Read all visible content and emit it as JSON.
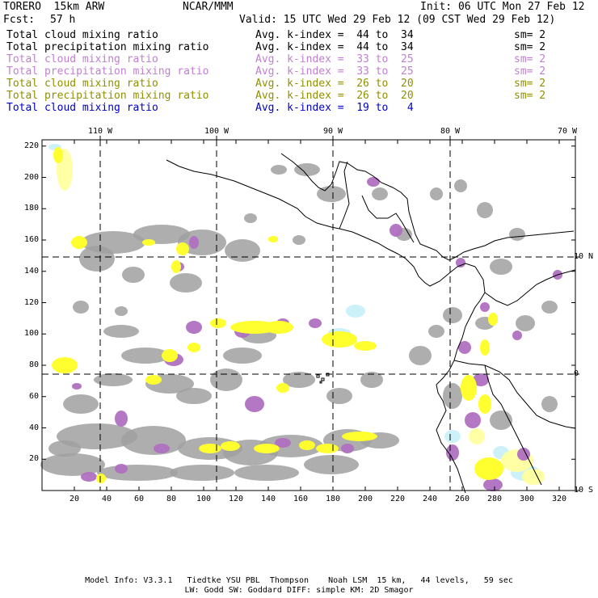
{
  "header": {
    "model": "TORERO  15km ARW",
    "center": "NCAR/MMM",
    "init": "Init: 06 UTC Mon 27 Feb 12",
    "fcst_label": "Fcst:",
    "fcst_value": "57 h",
    "valid": "Valid: 15 UTC Wed 29 Feb 12 (09 CST Wed 29 Feb 12)"
  },
  "fields": [
    {
      "name": "Total cloud mixing ratio",
      "index": "Avg. k-index =  44 to  34",
      "sm": "sm= 2",
      "color": "#000000"
    },
    {
      "name": "Total precipitation mixing ratio",
      "index": "Avg. k-index =  44 to  34",
      "sm": "sm= 2",
      "color": "#000000"
    },
    {
      "name": "Total cloud mixing ratio",
      "index": "Avg. k-index =  33 to  25",
      "sm": "sm= 2",
      "color": "#c080d0"
    },
    {
      "name": "Total precipitation mixing ratio",
      "index": "Avg. k-index =  33 to  25",
      "sm": "sm= 2",
      "color": "#c080d0"
    },
    {
      "name": "Total cloud mixing ratio",
      "index": "Avg. k-index =  26 to  20",
      "sm": "sm= 2",
      "color": "#909000"
    },
    {
      "name": "Total precipitation mixing ratio",
      "index": "Avg. k-index =  26 to  20",
      "sm": "sm= 2",
      "color": "#909000"
    },
    {
      "name": "Total cloud mixing ratio",
      "index": "Avg. k-index =  19 to   4",
      "sm": "",
      "color": "#0000cc"
    }
  ],
  "axes": {
    "top_ticks": [
      "110 W",
      "100 W",
      "90 W",
      "80 W",
      "70 W"
    ],
    "right_ticks": [
      "10 N",
      "0",
      "10 S"
    ],
    "x_ticks": [
      "20",
      "40",
      "60",
      "80",
      "100",
      "120",
      "140",
      "160",
      "180",
      "200",
      "220",
      "240",
      "260",
      "280",
      "300",
      "320"
    ],
    "y_ticks": [
      "220",
      "200",
      "180",
      "160",
      "140",
      "120",
      "100",
      "80",
      "60",
      "40",
      "20"
    ]
  },
  "footer": {
    "line1": "Model Info: V3.3.1   Tiedtke YSU PBL  Thompson    Noah LSM  15 km,   44 levels,   59 sec",
    "line2": "LW: Godd SW: Goddard DIFF: simple KM: 2D Smagor"
  },
  "colors": {
    "gray": "#a0a0a0",
    "purple": "#b070c0",
    "yellow": "#ffff30",
    "light_yellow": "#ffffa0",
    "cyan": "#c8f0f8"
  }
}
